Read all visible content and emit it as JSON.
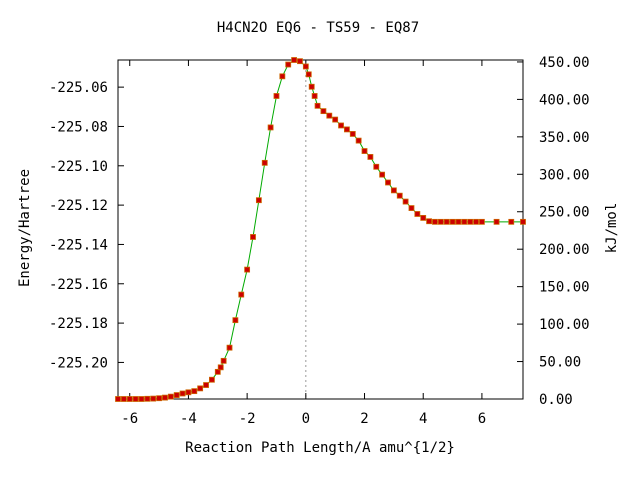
{
  "chart_data": {
    "type": "line",
    "title": "H4CN2O   EQ6 - TS59 - EQ87",
    "xlabel": "Reaction Path Length/A amu^{1/2}",
    "ylabel_left": "Energy/Hartree",
    "ylabel_right": "kJ/mol",
    "xlim": [
      -6.4,
      7.4
    ],
    "ylim_left": [
      -225.2186,
      -225.0462
    ],
    "ylim_right": [
      0,
      452.6
    ],
    "x_ticks": [
      -6,
      -4,
      -2,
      0,
      2,
      4,
      6
    ],
    "x_tick_labels": [
      "-6",
      "-4",
      "-2",
      "0",
      "2",
      "4",
      "6"
    ],
    "y_left_ticks": [
      -225.06,
      -225.08,
      -225.1,
      -225.12,
      -225.14,
      -225.16,
      -225.18,
      -225.2
    ],
    "y_left_tick_labels": [
      "-225.06",
      "-225.08",
      "-225.10",
      "-225.12",
      "-225.14",
      "-225.16",
      "-225.18",
      "-225.20"
    ],
    "y_right_ticks": [
      0,
      50,
      100,
      150,
      200,
      250,
      300,
      350,
      400,
      450
    ],
    "y_right_tick_labels": [
      "0.00",
      "50.00",
      "100.00",
      "150.00",
      "200.00",
      "250.00",
      "300.00",
      "350.00",
      "400.00",
      "450.00"
    ],
    "ts_x": 0,
    "curve_color": "#00aa00",
    "marker_color": "#cc0000",
    "marker_edge_color": "#cc6600",
    "series": [
      {
        "x": [
          -6.4,
          -6.2,
          -6.0,
          -5.8,
          -5.6,
          -5.4,
          -5.2,
          -5.0,
          -4.8,
          -4.6,
          -4.4,
          -4.2,
          -4.0,
          -3.8,
          -3.6,
          -3.4,
          -3.2,
          -3.0,
          -2.9,
          -2.8,
          -2.6,
          -2.4,
          -2.2,
          -2.0,
          -1.8,
          -1.6,
          -1.4,
          -1.2,
          -1.0,
          -0.8,
          -0.6,
          -0.4,
          -0.2,
          0.0,
          0.1,
          0.2,
          0.3,
          0.4,
          0.6,
          0.8,
          1.0,
          1.2,
          1.4,
          1.6,
          1.8,
          2.0,
          2.2,
          2.4,
          2.6,
          2.8,
          3.0,
          3.2,
          3.4,
          3.6,
          3.8,
          4.0,
          4.2,
          4.4,
          4.6,
          4.8,
          5.0,
          5.2,
          5.4,
          5.6,
          5.8,
          6.0,
          6.5,
          7.0,
          7.4
        ],
        "y": [
          -225.2186,
          -225.2186,
          -225.2186,
          -225.2186,
          -225.2186,
          -225.2185,
          -225.2184,
          -225.2182,
          -225.2179,
          -225.2174,
          -225.2166,
          -225.2158,
          -225.2152,
          -225.2146,
          -225.2132,
          -225.2115,
          -225.2088,
          -225.2048,
          -225.2025,
          -225.1992,
          -225.1925,
          -225.1785,
          -225.1655,
          -225.1528,
          -225.1362,
          -225.1175,
          -225.0985,
          -225.0805,
          -225.0645,
          -225.0545,
          -225.0485,
          -225.0462,
          -225.0468,
          -225.0495,
          -225.0535,
          -225.0598,
          -225.0645,
          -225.0695,
          -225.0722,
          -225.0745,
          -225.0765,
          -225.0795,
          -225.0815,
          -225.0838,
          -225.0872,
          -225.0925,
          -225.0955,
          -225.1005,
          -225.1045,
          -225.1085,
          -225.1125,
          -225.1152,
          -225.1182,
          -225.1215,
          -225.1245,
          -225.1265,
          -225.1282,
          -225.1285,
          -225.1285,
          -225.1285,
          -225.1285,
          -225.1285,
          -225.1285,
          -225.1285,
          -225.1285,
          -225.1285,
          -225.1285,
          -225.1285,
          -225.1285
        ],
        "markers": true
      }
    ]
  }
}
